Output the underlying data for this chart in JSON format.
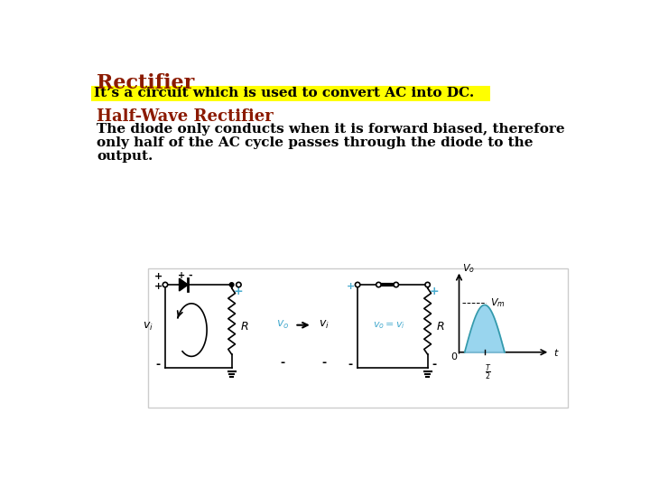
{
  "title": "Rectifier",
  "title_color": "#8B1A00",
  "subtitle": "It’s a circuit which is used to convert AC into DC.",
  "subtitle_bg": "#FFFF00",
  "subtitle_color": "#000000",
  "section_title": "Half-Wave Rectifier",
  "section_title_color": "#8B1A00",
  "body_line1": "The diode only conducts when it is forward biased, therefore",
  "body_line2": "only half of the AC cycle passes through the diode to the",
  "body_line3": "output.",
  "body_color": "#000000",
  "bg_color": "#FFFFFF",
  "diagram_box_edge": "#CCCCCC",
  "cyan_color": "#4AACCF",
  "wave_fill": "#87CEEB"
}
